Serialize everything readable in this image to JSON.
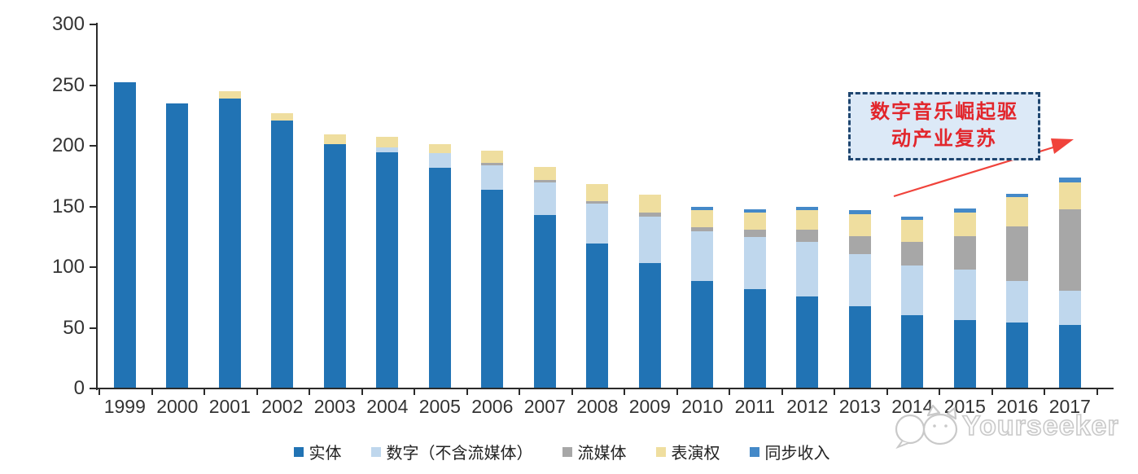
{
  "chart_data": {
    "type": "bar",
    "stacked": true,
    "title": "",
    "xlabel": "",
    "ylabel": "",
    "ylim": [
      0,
      300
    ],
    "yticks": [
      0,
      50,
      100,
      150,
      200,
      250,
      300
    ],
    "grid": false,
    "legend_position": "bottom",
    "categories": [
      "1999",
      "2000",
      "2001",
      "2002",
      "2003",
      "2004",
      "2005",
      "2006",
      "2007",
      "2008",
      "2009",
      "2010",
      "2011",
      "2012",
      "2013",
      "2014",
      "2015",
      "2016",
      "2017"
    ],
    "series": [
      {
        "name": "实体",
        "color": "#2173B4",
        "values": [
          252,
          234,
          238,
          220,
          201,
          194,
          181,
          163,
          142,
          119,
          103,
          88,
          81,
          75,
          67,
          60,
          56,
          54,
          52
        ]
      },
      {
        "name": "数字（不含流媒体）",
        "color": "#BFD7ED",
        "values": [
          0,
          0,
          0,
          0,
          0,
          4,
          12,
          20,
          27,
          33,
          38,
          41,
          43,
          45,
          43,
          41,
          41,
          34,
          28
        ]
      },
      {
        "name": "流媒体",
        "color": "#A7A7A7",
        "values": [
          0,
          0,
          0,
          0,
          0,
          0,
          0,
          2,
          2,
          2,
          3,
          3,
          6,
          10,
          15,
          19,
          28,
          45,
          67
        ]
      },
      {
        "name": "表演权",
        "color": "#EFDE9F",
        "values": [
          0,
          0,
          6,
          6,
          8,
          9,
          8,
          10,
          11,
          14,
          15,
          14,
          14,
          16,
          18,
          18,
          19,
          24,
          22
        ]
      },
      {
        "name": "同步收入",
        "color": "#4489C8",
        "values": [
          0,
          0,
          0,
          0,
          0,
          0,
          0,
          0,
          0,
          0,
          0,
          3,
          3,
          3,
          3,
          3,
          4,
          3,
          4
        ]
      }
    ]
  },
  "annotation": {
    "line1": "数字音乐崛起驱",
    "line2": "动产业复苏",
    "text_color": "#e2262c",
    "border_color": "#1f4670",
    "fill_color": "#dce9f7",
    "arrow_color": "#f0433b"
  },
  "watermark": {
    "text": "Yourseeker"
  }
}
